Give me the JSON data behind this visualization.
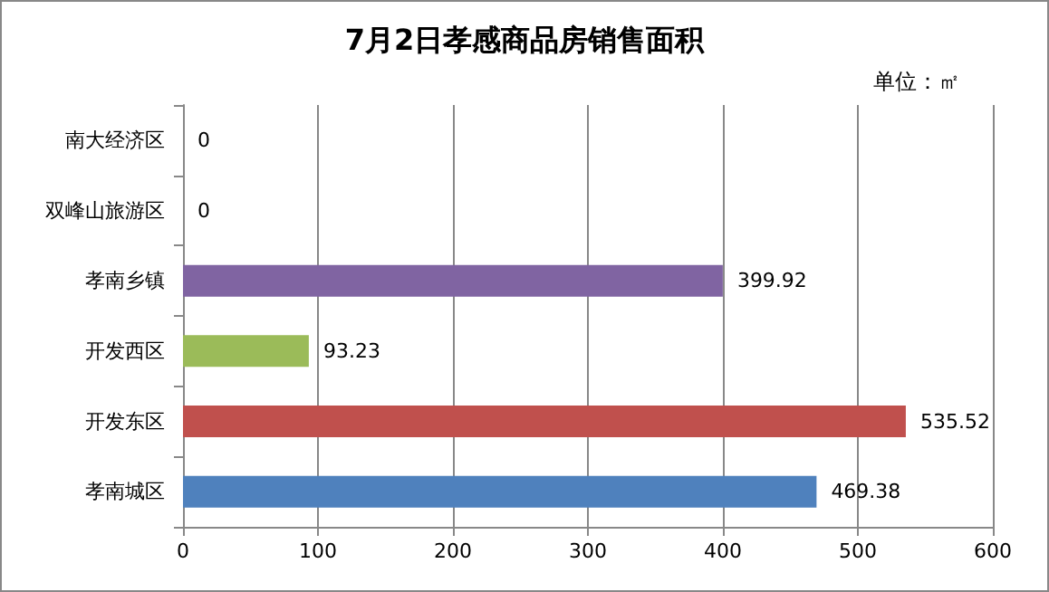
{
  "chart_data": {
    "type": "bar",
    "orientation": "horizontal",
    "title": "7月2日孝感商品房销售面积",
    "annotations": [
      "单位：㎡"
    ],
    "categories": [
      "南大经济区",
      "双峰山旅游区",
      "孝南乡镇",
      "开发西区",
      "开发东区",
      "孝南城区"
    ],
    "values": [
      0,
      0,
      399.92,
      93.23,
      535.52,
      469.38
    ],
    "colors": [
      "#f79646",
      "#4bacc6",
      "#8064a2",
      "#9bbb59",
      "#c0504d",
      "#4f81bd"
    ],
    "xlim": [
      0,
      600
    ],
    "xticks": [
      0,
      100,
      200,
      300,
      400,
      500,
      600
    ],
    "grid": "x",
    "data_labels": true
  }
}
